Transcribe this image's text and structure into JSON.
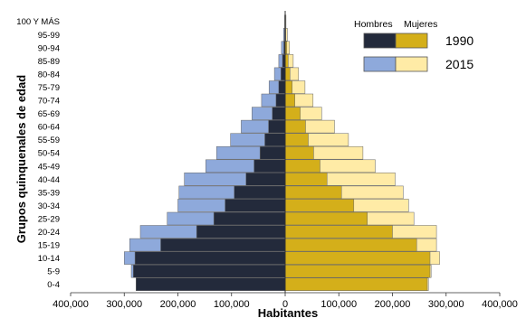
{
  "chart_data": {
    "type": "bar",
    "orientation": "horizontal",
    "subtype": "population-pyramid",
    "title": "",
    "xlabel": "Habitantes",
    "ylabel": "Grupos quinquenales de edad",
    "xlim": [
      -400000,
      400000
    ],
    "x_ticks": [
      -400000,
      -300000,
      -200000,
      -100000,
      0,
      100000,
      200000,
      300000,
      400000
    ],
    "x_tick_labels": [
      "400,000",
      "300,000",
      "200,000",
      "100,000",
      "0",
      "100,000",
      "200,000",
      "300,000",
      "400,000"
    ],
    "grid": false,
    "categories": [
      "0-4",
      "5-9",
      "10-14",
      "15-19",
      "20-24",
      "25-29",
      "30-34",
      "35-39",
      "40-44",
      "45-49",
      "50-54",
      "55-59",
      "60-64",
      "65-69",
      "70-74",
      "75-79",
      "80-84",
      "85-89",
      "90-94",
      "95-99",
      "100 Y MÁS"
    ],
    "legend": {
      "placement": "top-right",
      "sex_labels": [
        "Hombres",
        "Mujeres"
      ],
      "years": [
        "1990",
        "2015"
      ]
    },
    "series": [
      {
        "name": "Hombres 2015",
        "sex": "Hombres",
        "year": "2015",
        "color": "#8EA9DB",
        "values": [
          -278000,
          -287000,
          -300000,
          -290000,
          -270000,
          -220000,
          -200000,
          -198000,
          -188000,
          -148000,
          -128000,
          -102000,
          -82000,
          -62000,
          -44000,
          -30000,
          -20000,
          -12000,
          -7000,
          -3000,
          -1000
        ]
      },
      {
        "name": "Mujeres 2015",
        "sex": "Mujeres",
        "year": "2015",
        "color": "#FFEBA6",
        "values": [
          267000,
          272000,
          288000,
          282000,
          282000,
          240000,
          230000,
          220000,
          205000,
          168000,
          145000,
          118000,
          92000,
          68000,
          52000,
          37000,
          25000,
          15000,
          8000,
          4000,
          1500
        ]
      },
      {
        "name": "Hombres 1990",
        "sex": "Hombres",
        "year": "1990",
        "color": "#232A3B",
        "values": [
          -278000,
          -283000,
          -280000,
          -232000,
          -165000,
          -133000,
          -112000,
          -95000,
          -73000,
          -58000,
          -47000,
          -38000,
          -31000,
          -24000,
          -17000,
          -12000,
          -8000,
          -5000,
          -2500,
          -1000,
          -500
        ]
      },
      {
        "name": "Mujeres 1990",
        "sex": "Mujeres",
        "year": "1990",
        "color": "#D4AF1A",
        "values": [
          265000,
          270000,
          270000,
          245000,
          200000,
          153000,
          128000,
          105000,
          78000,
          65000,
          53000,
          43000,
          38000,
          28000,
          18000,
          13000,
          9000,
          5500,
          3000,
          1200,
          600
        ]
      }
    ]
  }
}
